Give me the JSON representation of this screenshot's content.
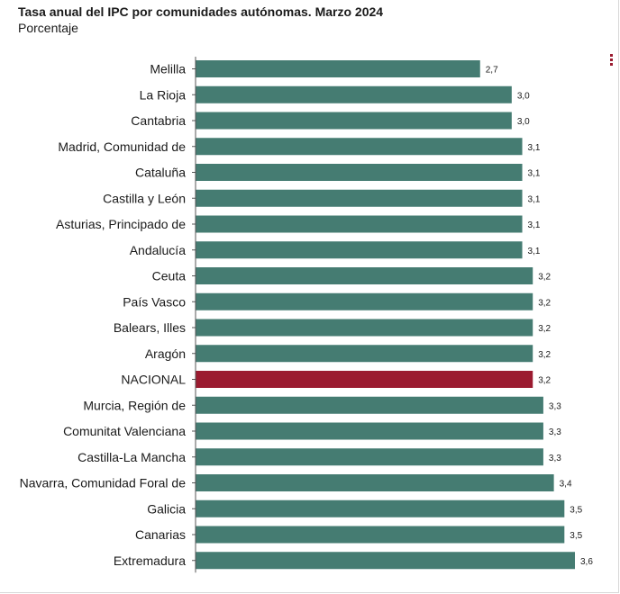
{
  "header": {
    "title": "Tasa anual del IPC por comunidades autónomas. Marzo 2024",
    "subtitle": "Porcentaje"
  },
  "toolbar": {
    "menu_icon": "vertical-dots-menu-icon"
  },
  "colors": {
    "bar": "#457c72",
    "highlight": "#9b1b30",
    "axis": "#555555"
  },
  "chart_data": {
    "type": "bar",
    "orientation": "horizontal",
    "title": "Tasa anual del IPC por comunidades autónomas. Marzo 2024",
    "subtitle": "Porcentaje",
    "categories": [
      "Melilla",
      "La Rioja",
      "Cantabria",
      "Madrid, Comunidad de",
      "Cataluña",
      "Castilla y León",
      "Asturias, Principado de",
      "Andalucía",
      "Ceuta",
      "País Vasco",
      "Balears, Illes",
      "Aragón",
      "NACIONAL",
      "Murcia, Región de",
      "Comunitat Valenciana",
      "Castilla-La Mancha",
      "Navarra, Comunidad Foral de",
      "Galicia",
      "Canarias",
      "Extremadura"
    ],
    "values": [
      2.7,
      3.0,
      3.0,
      3.1,
      3.1,
      3.1,
      3.1,
      3.1,
      3.2,
      3.2,
      3.2,
      3.2,
      3.2,
      3.3,
      3.3,
      3.3,
      3.4,
      3.5,
      3.5,
      3.6
    ],
    "value_labels": [
      "2,7",
      "3,0",
      "3,0",
      "3,1",
      "3,1",
      "3,1",
      "3,1",
      "3,1",
      "3,2",
      "3,2",
      "3,2",
      "3,2",
      "3,2",
      "3,3",
      "3,3",
      "3,3",
      "3,4",
      "3,5",
      "3,5",
      "3,6"
    ],
    "highlight_category": "NACIONAL",
    "xlim": [
      0,
      3.6
    ],
    "grid": false,
    "legend": "none"
  }
}
